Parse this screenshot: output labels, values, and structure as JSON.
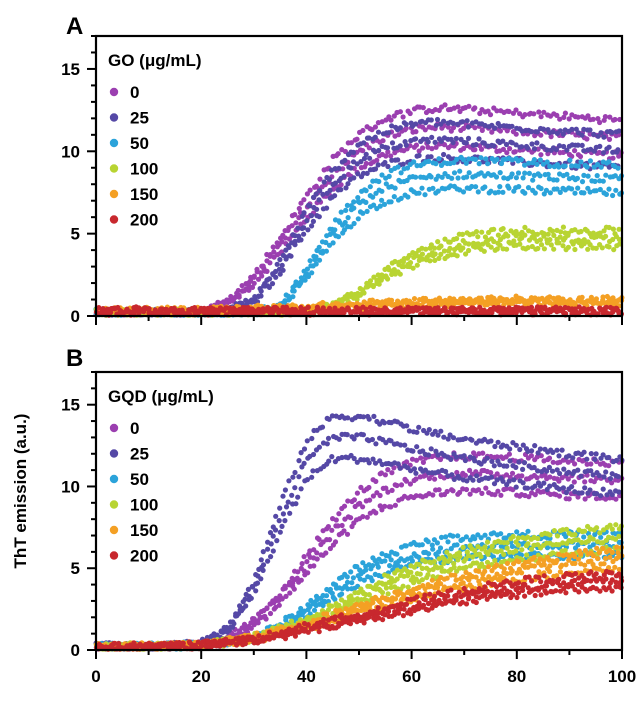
{
  "ylabel": "ThT emission (a.u.)",
  "chart_data": [
    {
      "type": "scatter",
      "panel": "A",
      "legend_title": "GO (μg/mL)",
      "legend_position": "top-left",
      "xlim": [
        0,
        100
      ],
      "ylim": [
        0,
        17
      ],
      "xticks": [
        0,
        20,
        40,
        60,
        80,
        100
      ],
      "yticks": [
        0,
        5,
        10,
        15
      ],
      "x_ticklabels_shown": false,
      "series": [
        {
          "name": "0",
          "color": "#9B3FB0",
          "replicates": 3,
          "x": [
            0,
            10,
            20,
            25,
            30,
            35,
            40,
            45,
            50,
            55,
            60,
            65,
            70,
            80,
            90,
            100
          ],
          "y": [
            0.2,
            0.2,
            0.25,
            0.8,
            2.2,
            4.3,
            6.6,
            8.6,
            10.0,
            10.9,
            11.3,
            11.5,
            11.4,
            11.2,
            11.0,
            10.8
          ]
        },
        {
          "name": "25",
          "color": "#5548A6",
          "replicates": 3,
          "x": [
            0,
            10,
            20,
            25,
            30,
            35,
            40,
            45,
            50,
            55,
            60,
            65,
            70,
            80,
            90,
            100
          ],
          "y": [
            0.2,
            0.2,
            0.2,
            0.3,
            0.9,
            3.0,
            5.8,
            8.0,
            9.5,
            10.2,
            10.6,
            10.7,
            10.6,
            10.4,
            10.2,
            10.0
          ]
        },
        {
          "name": "50",
          "color": "#2BA3DA",
          "replicates": 3,
          "x": [
            0,
            10,
            20,
            30,
            35,
            40,
            45,
            50,
            55,
            60,
            65,
            70,
            80,
            90,
            100
          ],
          "y": [
            0.2,
            0.2,
            0.2,
            0.2,
            0.5,
            2.5,
            5.0,
            6.8,
            7.8,
            8.3,
            8.5,
            8.6,
            8.5,
            8.4,
            8.3
          ]
        },
        {
          "name": "100",
          "color": "#B8D432",
          "replicates": 3,
          "x": [
            0,
            10,
            20,
            30,
            40,
            45,
            50,
            55,
            60,
            65,
            70,
            75,
            80,
            90,
            100
          ],
          "y": [
            0.2,
            0.2,
            0.2,
            0.2,
            0.3,
            0.6,
            1.4,
            2.5,
            3.4,
            4.0,
            4.4,
            4.6,
            4.7,
            4.7,
            4.7
          ]
        },
        {
          "name": "150",
          "color": "#F4A024",
          "replicates": 3,
          "x": [
            0,
            20,
            40,
            60,
            80,
            100
          ],
          "y": [
            0.3,
            0.3,
            0.5,
            0.8,
            0.9,
            0.9
          ]
        },
        {
          "name": "200",
          "color": "#C8282E",
          "replicates": 3,
          "x": [
            0,
            20,
            40,
            60,
            80,
            100
          ],
          "y": [
            0.3,
            0.3,
            0.3,
            0.3,
            0.3,
            0.3
          ]
        }
      ]
    },
    {
      "type": "scatter",
      "panel": "B",
      "legend_title": "GQD (μg/mL)",
      "legend_position": "top-left",
      "xlim": [
        0,
        100
      ],
      "ylim": [
        0,
        17
      ],
      "xticks": [
        0,
        20,
        40,
        60,
        80,
        100
      ],
      "yticks": [
        0,
        5,
        10,
        15
      ],
      "x_ticklabels_shown": true,
      "series": [
        {
          "name": "0",
          "color": "#9B3FB0",
          "replicates": 3,
          "x": [
            0,
            10,
            20,
            25,
            30,
            35,
            40,
            45,
            50,
            55,
            60,
            65,
            70,
            80,
            90,
            100
          ],
          "y": [
            0.2,
            0.2,
            0.3,
            0.7,
            1.6,
            3.2,
            5.2,
            7.2,
            8.8,
            9.8,
            10.4,
            10.7,
            10.8,
            10.7,
            10.5,
            10.4
          ]
        },
        {
          "name": "25",
          "color": "#5548A6",
          "replicates": 3,
          "x": [
            0,
            10,
            20,
            25,
            30,
            35,
            40,
            45,
            50,
            55,
            60,
            65,
            70,
            80,
            90,
            100
          ],
          "y": [
            0.2,
            0.2,
            0.4,
            1.2,
            3.8,
            8.0,
            11.6,
            13.0,
            13.0,
            12.7,
            12.3,
            12.0,
            11.7,
            11.3,
            10.9,
            10.6
          ]
        },
        {
          "name": "50",
          "color": "#2BA3DA",
          "replicates": 3,
          "x": [
            0,
            10,
            20,
            30,
            35,
            40,
            45,
            50,
            55,
            60,
            65,
            70,
            80,
            90,
            100
          ],
          "y": [
            0.2,
            0.2,
            0.3,
            0.7,
            1.4,
            2.4,
            3.6,
            4.6,
            5.3,
            5.8,
            6.1,
            6.3,
            6.4,
            6.4,
            6.4
          ]
        },
        {
          "name": "100",
          "color": "#B8D432",
          "replicates": 3,
          "x": [
            0,
            10,
            20,
            30,
            40,
            45,
            50,
            55,
            60,
            70,
            80,
            90,
            100
          ],
          "y": [
            0.2,
            0.2,
            0.3,
            0.7,
            1.7,
            2.4,
            3.2,
            4.0,
            4.6,
            5.6,
            6.2,
            6.6,
            6.8
          ]
        },
        {
          "name": "150",
          "color": "#F4A024",
          "replicates": 3,
          "x": [
            0,
            10,
            20,
            30,
            40,
            50,
            60,
            70,
            80,
            90,
            100
          ],
          "y": [
            0.2,
            0.2,
            0.3,
            0.7,
            1.5,
            2.5,
            3.4,
            4.2,
            4.8,
            5.3,
            5.6
          ]
        },
        {
          "name": "200",
          "color": "#C8282E",
          "replicates": 3,
          "x": [
            0,
            10,
            20,
            30,
            40,
            50,
            60,
            70,
            80,
            90,
            100
          ],
          "y": [
            0.2,
            0.2,
            0.3,
            0.6,
            1.3,
            2.0,
            2.7,
            3.3,
            3.8,
            4.1,
            4.2
          ]
        }
      ]
    }
  ]
}
